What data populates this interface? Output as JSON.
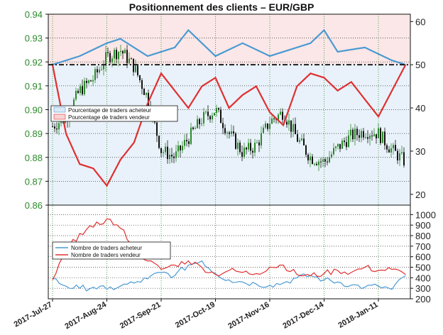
{
  "title": "Positionnement des clients – EUR/GBP",
  "colors": {
    "candle_up": "#2a8a2a",
    "candle_down": "#111111",
    "buyer": "#4a9ad4",
    "seller": "#e03030",
    "buyer_fill": "#dbe9f6",
    "seller_fill": "#f8d4d4",
    "grid": "#2a8a2a"
  },
  "chart_data": [
    {
      "type": "candlestick",
      "x": [
        "2017-Jul-27",
        "2017-Aug-24",
        "2017-Sep-21",
        "2017-Oct-19",
        "2017-Nov-16",
        "2017-Dec-14",
        "2018-Jan-11"
      ],
      "x_tick_labels": [
        "2017-Jul-27",
        "2017-Aug-24",
        "2017-Sep-21",
        "2017-Oct-19",
        "2017-Nov-16",
        "2017-Dec-14",
        "2018-Jan-11"
      ],
      "y_left_ticks": [
        "0.86",
        "0.87",
        "0.88",
        "0.89",
        "0.90",
        "0.91",
        "0.92",
        "0.93",
        "0.94"
      ],
      "y_left_range": [
        0.86,
        0.94
      ],
      "y_right_ticks": [
        "20",
        "30",
        "40",
        "50",
        "60"
      ],
      "y_right_range": [
        17.5,
        61.7
      ],
      "reference_line_right": 50,
      "close_series": [
        [
          "2017-Jul-27",
          0.893
        ],
        [
          "2017-Aug-03",
          0.897
        ],
        [
          "2017-Aug-10",
          0.908
        ],
        [
          "2017-Aug-17",
          0.913
        ],
        [
          "2017-Aug-24",
          0.922
        ],
        [
          "2017-Aug-31",
          0.925
        ],
        [
          "2017-Sep-07",
          0.918
        ],
        [
          "2017-Sep-14",
          0.905
        ],
        [
          "2017-Sep-21",
          0.883
        ],
        [
          "2017-Sep-28",
          0.88
        ],
        [
          "2017-Oct-05",
          0.888
        ],
        [
          "2017-Oct-12",
          0.896
        ],
        [
          "2017-Oct-19",
          0.9
        ],
        [
          "2017-Oct-26",
          0.89
        ],
        [
          "2017-Nov-02",
          0.882
        ],
        [
          "2017-Nov-09",
          0.885
        ],
        [
          "2017-Nov-16",
          0.895
        ],
        [
          "2017-Nov-23",
          0.899
        ],
        [
          "2017-Nov-30",
          0.888
        ],
        [
          "2017-Dec-07",
          0.88
        ],
        [
          "2017-Dec-14",
          0.878
        ],
        [
          "2017-Dec-21",
          0.884
        ],
        [
          "2017-Dec-28",
          0.889
        ],
        [
          "2018-Jan-04",
          0.891
        ],
        [
          "2018-Jan-11",
          0.89
        ],
        [
          "2018-Jan-18",
          0.883
        ],
        [
          "2018-Jan-25",
          0.878
        ]
      ],
      "series": [
        {
          "name": "Pourcentage de traders acheteur",
          "y_axis": "right",
          "values": [
            [
              "2017-Jul-27",
              50
            ],
            [
              "2017-Aug-10",
              52
            ],
            [
              "2017-Aug-24",
              55
            ],
            [
              "2017-Aug-31",
              56
            ],
            [
              "2017-Sep-14",
              52
            ],
            [
              "2017-Sep-28",
              54
            ],
            [
              "2017-Oct-05",
              58
            ],
            [
              "2017-Oct-12",
              55
            ],
            [
              "2017-Oct-19",
              52
            ],
            [
              "2017-Nov-02",
              55
            ],
            [
              "2017-Nov-16",
              52
            ],
            [
              "2017-Dec-07",
              55
            ],
            [
              "2017-Dec-14",
              58
            ],
            [
              "2017-Dec-21",
              53
            ],
            [
              "2018-Jan-04",
              54
            ],
            [
              "2018-Jan-18",
              51
            ],
            [
              "2018-Jan-25",
              50
            ]
          ]
        },
        {
          "name": "Pourcentage de traders vendeur",
          "y_axis": "right",
          "values": [
            [
              "2017-Jul-27",
              50
            ],
            [
              "2017-Aug-03",
              34
            ],
            [
              "2017-Aug-10",
              27
            ],
            [
              "2017-Aug-17",
              26
            ],
            [
              "2017-Aug-24",
              22
            ],
            [
              "2017-Aug-31",
              28
            ],
            [
              "2017-Sep-07",
              32
            ],
            [
              "2017-Sep-14",
              41
            ],
            [
              "2017-Sep-21",
              48
            ],
            [
              "2017-Sep-28",
              44
            ],
            [
              "2017-Oct-05",
              40
            ],
            [
              "2017-Oct-12",
              45
            ],
            [
              "2017-Oct-19",
              47
            ],
            [
              "2017-Oct-26",
              40
            ],
            [
              "2017-Nov-02",
              43
            ],
            [
              "2017-Nov-09",
              45
            ],
            [
              "2017-Nov-16",
              39
            ],
            [
              "2017-Nov-23",
              36
            ],
            [
              "2017-Nov-30",
              45
            ],
            [
              "2017-Dec-07",
              48
            ],
            [
              "2017-Dec-14",
              47
            ],
            [
              "2017-Dec-21",
              44
            ],
            [
              "2017-Dec-28",
              46
            ],
            [
              "2018-Jan-04",
              42
            ],
            [
              "2018-Jan-11",
              38
            ],
            [
              "2018-Jan-18",
              44
            ],
            [
              "2018-Jan-25",
              50
            ]
          ]
        }
      ]
    },
    {
      "type": "line",
      "x": [
        "2017-Jul-27",
        "2018-Jan-25"
      ],
      "y_ticks": [
        "200",
        "300",
        "400",
        "500",
        "600",
        "700",
        "800",
        "900",
        "1000"
      ],
      "y_range": [
        200,
        1090
      ],
      "series": [
        {
          "name": "Nombre de traders acheteur",
          "values": [
            [
              "2017-Jul-27",
              390
            ],
            [
              "2017-Aug-03",
              320
            ],
            [
              "2017-Aug-10",
              300
            ],
            [
              "2017-Aug-17",
              310
            ],
            [
              "2017-Aug-24",
              290
            ],
            [
              "2017-Aug-31",
              320
            ],
            [
              "2017-Sep-07",
              350
            ],
            [
              "2017-Sep-14",
              390
            ],
            [
              "2017-Sep-21",
              450
            ],
            [
              "2017-Sep-28",
              420
            ],
            [
              "2017-Oct-05",
              520
            ],
            [
              "2017-Oct-12",
              560
            ],
            [
              "2017-Oct-19",
              440
            ],
            [
              "2017-Oct-26",
              380
            ],
            [
              "2017-Nov-02",
              360
            ],
            [
              "2017-Nov-09",
              340
            ],
            [
              "2017-Nov-16",
              330
            ],
            [
              "2017-Nov-23",
              350
            ],
            [
              "2017-Nov-30",
              400
            ],
            [
              "2017-Dec-07",
              420
            ],
            [
              "2017-Dec-14",
              380
            ],
            [
              "2017-Dec-21",
              360
            ],
            [
              "2017-Dec-28",
              330
            ],
            [
              "2018-Jan-04",
              310
            ],
            [
              "2018-Jan-11",
              320
            ],
            [
              "2018-Jan-18",
              290
            ],
            [
              "2018-Jan-25",
              420
            ]
          ]
        },
        {
          "name": "Nombre de traders vendeur",
          "values": [
            [
              "2017-Jul-27",
              380
            ],
            [
              "2017-Aug-03",
              650
            ],
            [
              "2017-Aug-10",
              820
            ],
            [
              "2017-Aug-17",
              880
            ],
            [
              "2017-Aug-24",
              960
            ],
            [
              "2017-Aug-31",
              870
            ],
            [
              "2017-Sep-07",
              700
            ],
            [
              "2017-Sep-14",
              560
            ],
            [
              "2017-Sep-21",
              480
            ],
            [
              "2017-Sep-28",
              520
            ],
            [
              "2017-Oct-05",
              560
            ],
            [
              "2017-Oct-12",
              500
            ],
            [
              "2017-Oct-19",
              430
            ],
            [
              "2017-Oct-26",
              470
            ],
            [
              "2017-Nov-02",
              450
            ],
            [
              "2017-Nov-09",
              440
            ],
            [
              "2017-Nov-16",
              500
            ],
            [
              "2017-Nov-23",
              520
            ],
            [
              "2017-Nov-30",
              430
            ],
            [
              "2017-Dec-07",
              420
            ],
            [
              "2017-Dec-14",
              440
            ],
            [
              "2017-Dec-21",
              470
            ],
            [
              "2017-Dec-28",
              450
            ],
            [
              "2018-Jan-04",
              500
            ],
            [
              "2018-Jan-11",
              470
            ],
            [
              "2018-Jan-18",
              480
            ],
            [
              "2018-Jan-25",
              430
            ]
          ]
        }
      ]
    }
  ]
}
